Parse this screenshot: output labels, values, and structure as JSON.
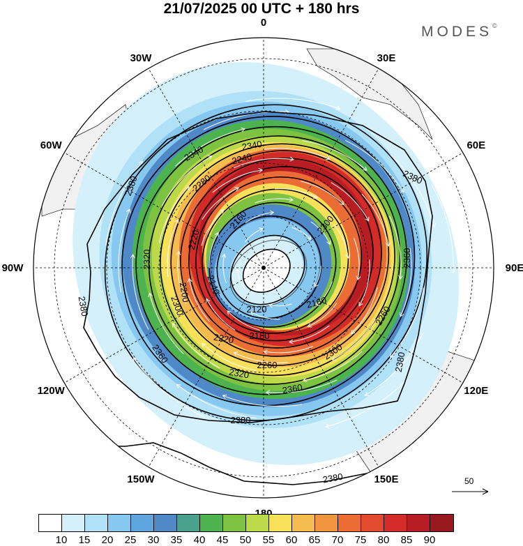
{
  "title": "21/07/2025  00 UTC  + 180 hrs",
  "brand": "MODES",
  "brand_mark": "©",
  "longitude_labels": [
    {
      "text": "0",
      "deg": 0
    },
    {
      "text": "30E",
      "deg": 30
    },
    {
      "text": "60E",
      "deg": 60
    },
    {
      "text": "90E",
      "deg": 90
    },
    {
      "text": "120E",
      "deg": 120
    },
    {
      "text": "150E",
      "deg": 150
    },
    {
      "text": "180",
      "deg": 180
    },
    {
      "text": "150W",
      "deg": 210
    },
    {
      "text": "120W",
      "deg": 240
    },
    {
      "text": "90W",
      "deg": 270
    },
    {
      "text": "60W",
      "deg": 300
    },
    {
      "text": "30W",
      "deg": 330
    }
  ],
  "contour_labels": [
    "2380",
    "2380",
    "2380",
    "2380",
    "2380",
    "2380",
    "2360",
    "2360",
    "2360",
    "2340",
    "2340",
    "2320",
    "2320",
    "2300",
    "2300",
    "2300",
    "2280",
    "2260",
    "2260",
    "2240",
    "2220",
    "2220",
    "2200",
    "2180",
    "2160",
    "2160",
    "2140",
    "2120"
  ],
  "reference_vector": {
    "value": "50"
  },
  "colorbar": {
    "colors": [
      "#ffffff",
      "#d4f0fb",
      "#b0e1f7",
      "#86c8ef",
      "#5fa6de",
      "#4f89c8",
      "#4aa28e",
      "#4cb34f",
      "#7ec242",
      "#bcd94a",
      "#f8e15a",
      "#f6bb4e",
      "#f29540",
      "#ec6c35",
      "#e24b30",
      "#d22b28",
      "#b81d24",
      "#981a1e"
    ],
    "labels": [
      "10",
      "15",
      "20",
      "25",
      "30",
      "35",
      "40",
      "45",
      "50",
      "55",
      "60",
      "65",
      "70",
      "75",
      "80",
      "85",
      "90"
    ]
  }
}
